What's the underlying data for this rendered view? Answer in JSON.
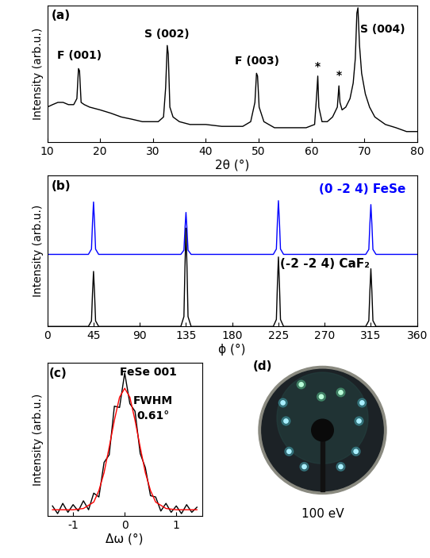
{
  "chart_data": [
    {
      "type": "line",
      "panel": "(a)",
      "x_label": "2θ (°)",
      "y_label": "Intensity (arb.u.)",
      "log": "y",
      "tick_labels": "x",
      "xlim": [
        10,
        80
      ],
      "xticks": [
        10,
        20,
        30,
        40,
        50,
        60,
        70,
        80
      ],
      "ylim": [
        1.5,
        1000
      ],
      "series": [
        {
          "color": "#000000",
          "x": [
            10,
            11,
            12,
            13,
            14,
            15,
            15.6,
            15.9,
            16.1,
            16.4,
            17,
            18,
            20,
            22,
            24,
            26,
            28,
            30,
            31,
            32,
            32.4,
            32.7,
            32.9,
            33.2,
            33.8,
            35,
            37,
            40,
            43,
            45,
            47,
            48.5,
            49.3,
            49.6,
            49.8,
            50.1,
            51,
            53,
            55,
            57,
            59,
            60.6,
            61.0,
            61.2,
            61.4,
            62,
            63,
            64,
            64.9,
            65.2,
            65.4,
            65.8,
            66.5,
            67.3,
            67.9,
            68.3,
            68.6,
            68.8,
            69.1,
            69.5,
            70.2,
            71,
            72,
            74,
            76,
            78,
            80
          ],
          "values": [
            8,
            9,
            10,
            10,
            9,
            9,
            12,
            50,
            45,
            10,
            9,
            8,
            7,
            6,
            5,
            4.5,
            4,
            4,
            4,
            5,
            20,
            150,
            100,
            8,
            5,
            4,
            3.5,
            3.5,
            3.2,
            3.2,
            3.2,
            4,
            10,
            40,
            35,
            8,
            4,
            3,
            3,
            3,
            3,
            3.5,
            15,
            35,
            8,
            4,
            4,
            5,
            8,
            22,
            10,
            7,
            8,
            12,
            25,
            80,
            700,
            900,
            150,
            40,
            15,
            8,
            5,
            3.5,
            3,
            2.5,
            2.5
          ]
        }
      ],
      "annotations": [
        {
          "text": "F (001)",
          "x": 16,
          "y": 70
        },
        {
          "text": "S (002)",
          "x": 32.7,
          "y": 200
        },
        {
          "text": "F (003)",
          "x": 49.7,
          "y": 55
        },
        {
          "text": "*",
          "x": 61.2,
          "y": 42
        },
        {
          "text": "*",
          "x": 65.2,
          "y": 28
        },
        {
          "text": "S (004)",
          "x": 73.5,
          "y": 250
        }
      ]
    },
    {
      "type": "line",
      "panel": "(b)",
      "x_label": "ϕ (°)",
      "y_label": "Intensity (arb.u.)",
      "tick_labels": "x",
      "xlim": [
        0,
        360
      ],
      "xticks": [
        0,
        45,
        90,
        135,
        180,
        225,
        270,
        315,
        360
      ],
      "ylim": [
        0,
        11.5
      ],
      "series": [
        {
          "name": "(0 -2 4) FeSe",
          "color": "#0000ff",
          "x": [
            0,
            40,
            43,
            44,
            45,
            46,
            47,
            50,
            130,
            133,
            134,
            135,
            136,
            137,
            140,
            220,
            223,
            224,
            225,
            226,
            227,
            230,
            310,
            313,
            314,
            315,
            316,
            317,
            320,
            360
          ],
          "values": [
            5.5,
            5.5,
            5.9,
            7.9,
            9.5,
            7.9,
            5.9,
            5.5,
            5.5,
            5.82,
            7.42,
            8.7,
            7.42,
            5.82,
            5.5,
            5.5,
            5.91,
            7.96,
            9.6,
            7.96,
            5.91,
            5.5,
            5.5,
            5.88,
            7.78,
            9.3,
            7.78,
            5.88,
            5.5,
            5.5
          ]
        },
        {
          "name": "(-2 -2 4) CaF₂",
          "color": "#000000",
          "x": [
            0,
            40,
            43,
            44,
            45,
            46,
            47,
            50,
            130,
            133,
            134,
            135,
            136,
            137,
            140,
            220,
            223,
            224,
            225,
            226,
            227,
            230,
            310,
            313,
            314,
            315,
            316,
            317,
            320,
            360
          ],
          "values": [
            0,
            0,
            0.42,
            2.52,
            4.2,
            2.52,
            0.42,
            0,
            0,
            0.75,
            4.5,
            7.5,
            4.5,
            0.75,
            0,
            0,
            0.53,
            3.18,
            5.3,
            3.18,
            0.53,
            0,
            0,
            0.44,
            2.64,
            4.4,
            2.64,
            0.44,
            0,
            0
          ]
        }
      ]
    },
    {
      "type": "line",
      "panel": "(c)",
      "x_label": "Δω (°)",
      "y_label": "Intensity (arb.u.)",
      "tick_labels": "x",
      "xlim": [
        -1.5,
        1.5
      ],
      "xticks": [
        -1,
        0,
        1
      ],
      "ylim": [
        0,
        1.2
      ],
      "series": [
        {
          "color": "#000000",
          "x": [
            -1.4,
            -1.3,
            -1.2,
            -1.1,
            -1.0,
            -0.9,
            -0.8,
            -0.7,
            -0.6,
            -0.5,
            -0.4,
            -0.3,
            -0.2,
            -0.1,
            0,
            0.1,
            0.2,
            0.3,
            0.4,
            0.5,
            0.6,
            0.7,
            0.8,
            0.9,
            1.0,
            1.1,
            1.2,
            1.3,
            1.4
          ],
          "values": [
            0.08,
            0.02,
            0.1,
            0.03,
            0.09,
            0.04,
            0.12,
            0.05,
            0.18,
            0.15,
            0.42,
            0.48,
            0.86,
            0.85,
            1.12,
            0.88,
            0.82,
            0.49,
            0.38,
            0.16,
            0.15,
            0.04,
            0.1,
            0.03,
            0.08,
            0.02,
            0.09,
            0.03,
            0.07
          ]
        },
        {
          "color": "#ff0000",
          "x": [
            -1.4,
            -1.2,
            -1.0,
            -0.8,
            -0.6,
            -0.5,
            -0.4,
            -0.3,
            -0.2,
            -0.1,
            0,
            0.1,
            0.2,
            0.3,
            0.4,
            0.5,
            0.6,
            0.8,
            1.0,
            1.2,
            1.4
          ],
          "values": [
            0.05,
            0.05,
            0.05,
            0.06,
            0.11,
            0.2,
            0.34,
            0.54,
            0.75,
            0.93,
            1.0,
            0.93,
            0.75,
            0.54,
            0.34,
            0.2,
            0.11,
            0.06,
            0.05,
            0.05,
            0.05
          ]
        }
      ],
      "annotations": [
        {
          "text": "FeSe 001",
          "x": 0.45,
          "y": 1.08
        },
        {
          "text": "FWHM",
          "x": 0.55,
          "y": 0.86
        },
        {
          "text": "0.61°",
          "x": 0.55,
          "y": 0.74
        }
      ]
    },
    {
      "type": "image",
      "panel": "(d)",
      "caption": "100 eV"
    }
  ]
}
